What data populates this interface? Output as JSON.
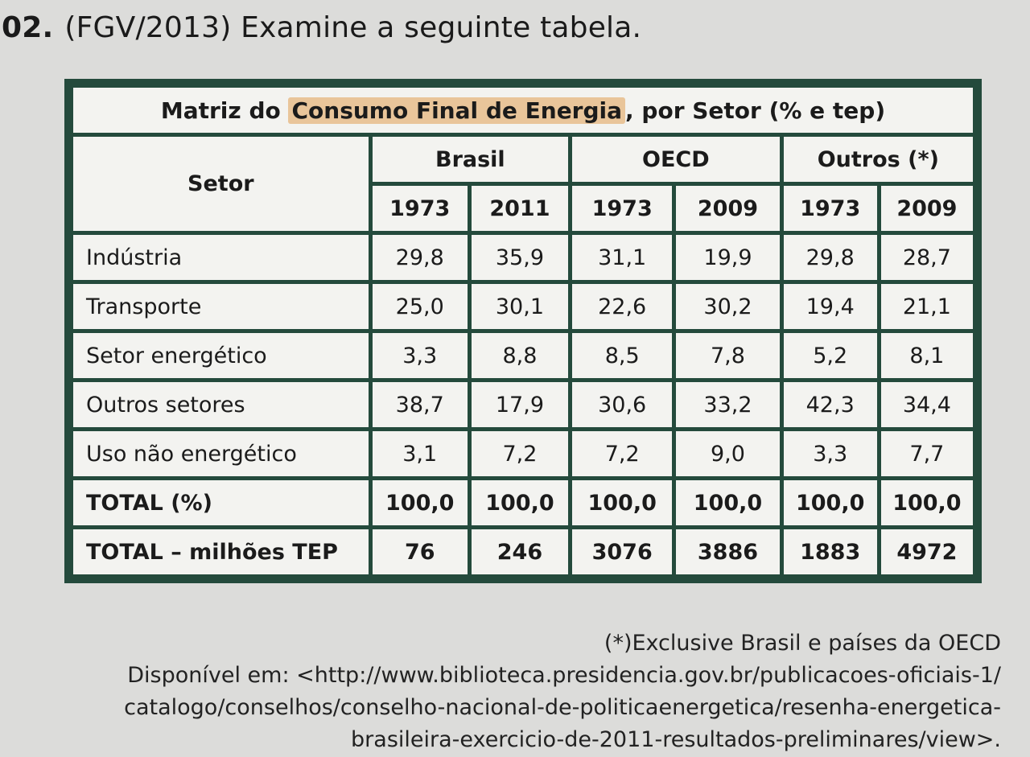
{
  "question": {
    "number": "02.",
    "text": "(FGV/2013) Examine a seguinte tabela."
  },
  "table": {
    "title_before": "Matriz do ",
    "title_highlight": "Consumo Final de Energia",
    "title_after": ", por Setor (% e tep)",
    "setor_header": "Setor",
    "groups": [
      "Brasil",
      "OECD",
      "Outros (*)"
    ],
    "years": [
      "1973",
      "2011",
      "1973",
      "2009",
      "1973",
      "2009"
    ],
    "rows": [
      {
        "label": "Indústria",
        "values": [
          "29,8",
          "35,9",
          "31,1",
          "19,9",
          "29,8",
          "28,7"
        ]
      },
      {
        "label": "Transporte",
        "values": [
          "25,0",
          "30,1",
          "22,6",
          "30,2",
          "19,4",
          "21,1"
        ]
      },
      {
        "label": "Setor energético",
        "values": [
          "3,3",
          "8,8",
          "8,5",
          "7,8",
          "5,2",
          "8,1"
        ]
      },
      {
        "label": "Outros setores",
        "values": [
          "38,7",
          "17,9",
          "30,6",
          "33,2",
          "42,3",
          "34,4"
        ]
      },
      {
        "label": "Uso não energético",
        "values": [
          "3,1",
          "7,2",
          "7,2",
          "9,0",
          "3,3",
          "7,7"
        ]
      }
    ],
    "totals": [
      {
        "label": "TOTAL (%)",
        "values": [
          "100,0",
          "100,0",
          "100,0",
          "100,0",
          "100,0",
          "100,0"
        ]
      },
      {
        "label": "TOTAL – milhões TEP",
        "values": [
          "76",
          "246",
          "3076",
          "3886",
          "1883",
          "4972"
        ]
      }
    ]
  },
  "notes": {
    "footnote": "(*)Exclusive Brasil e países da OECD",
    "source_1": "Disponível em: <http://www.biblioteca.presidencia.gov.br/publicacoes-oficiais-1/",
    "source_2": "catalogo/conselhos/conselho-nacional-de-politicaenergetica/resenha-energetica-",
    "source_3": "brasileira-exercicio-de-2011-resultados-preliminares/view>."
  },
  "colors": {
    "border": "#244a3c",
    "highlight": "#e9c59a"
  }
}
